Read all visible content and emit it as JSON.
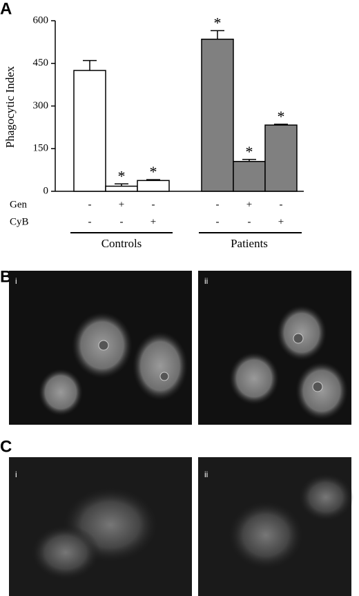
{
  "chart_data": {
    "type": "bar",
    "y_label": "Phagocytic Index",
    "ylim": [
      0,
      600
    ],
    "yticks": [
      0,
      150,
      300,
      450,
      600
    ],
    "row_labels": [
      "Gen",
      "CyB"
    ],
    "series": [
      {
        "name": "Controls",
        "color": "#ffffff",
        "values": [
          425,
          18,
          38
        ],
        "errors": [
          35,
          8,
          3
        ],
        "markers": [
          null,
          "*",
          "*"
        ],
        "conditions": [
          [
            "-",
            "-"
          ],
          [
            "+",
            "-"
          ],
          [
            "-",
            "+"
          ]
        ]
      },
      {
        "name": "Patients",
        "color": "#808080",
        "values": [
          535,
          105,
          233
        ],
        "errors": [
          30,
          7,
          3
        ],
        "markers": [
          "*",
          "*",
          "*"
        ],
        "conditions": [
          [
            "-",
            "-"
          ],
          [
            "+",
            "-"
          ],
          [
            "-",
            "+"
          ]
        ]
      }
    ]
  },
  "figure": {
    "panel_labels": [
      "A",
      "B",
      "C"
    ],
    "image_labels": [
      [
        "i",
        "ii"
      ],
      [
        "i",
        "ii"
      ]
    ]
  }
}
